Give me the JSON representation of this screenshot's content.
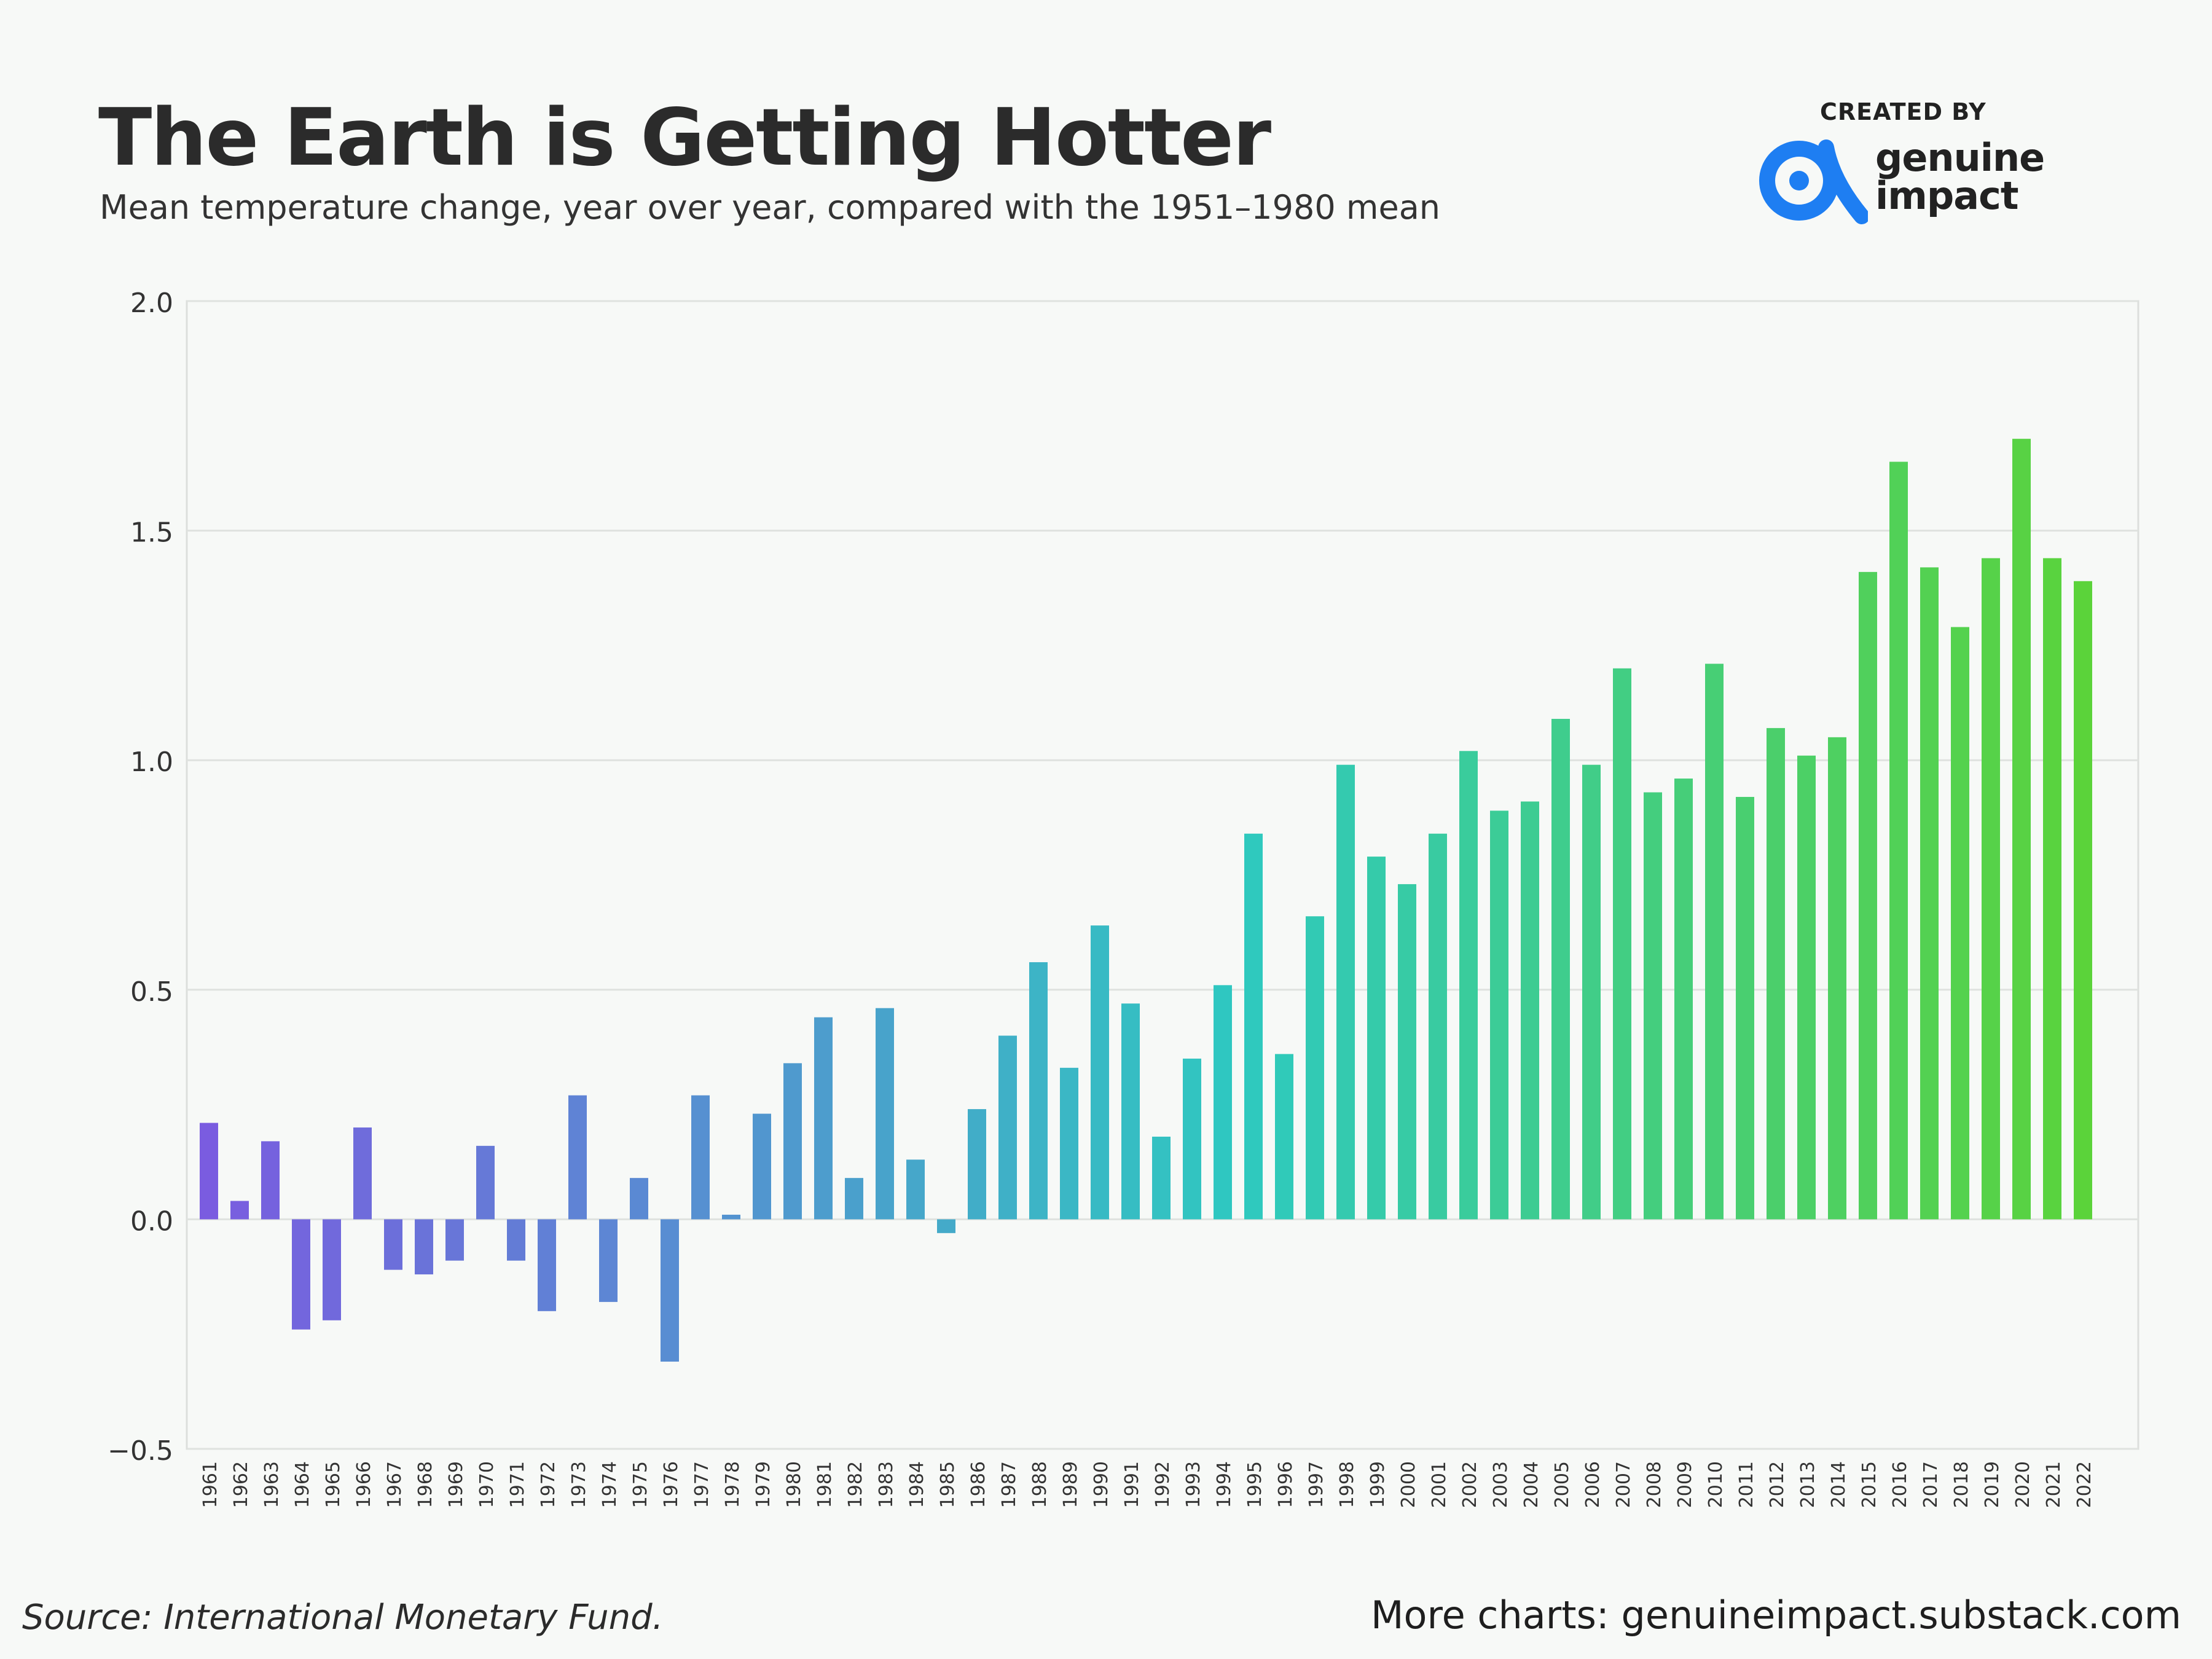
{
  "header": {
    "title": "The Earth is Getting Hotter",
    "subtitle": "Mean temperature change, year over year, compared with the 1951–1980 mean"
  },
  "credit": {
    "label": "CREATED BY",
    "brand_line1": "genuine",
    "brand_line2": "impact",
    "brand_color": "#1e7ef2"
  },
  "footer": {
    "source": "Source: International Monetary Fund.",
    "more": "More charts: genuineimpact.substack.com"
  },
  "chart_data": {
    "type": "bar",
    "title": "",
    "xlabel": "",
    "ylabel": "",
    "ylim": [
      -0.5,
      2.0
    ],
    "yticks": [
      "2.0",
      "1.5",
      "1.0",
      "0.5",
      "0.0",
      "−0.5"
    ],
    "ytick_values": [
      2.0,
      1.5,
      1.0,
      0.5,
      0.0,
      -0.5
    ],
    "grid": true,
    "legend": "none",
    "color_start": "#7a5ce0",
    "color_mid": "#2ec9c0",
    "color_end": "#5bd33a",
    "categories": [
      "1961",
      "1962",
      "1963",
      "1964",
      "1965",
      "1966",
      "1967",
      "1968",
      "1969",
      "1970",
      "1971",
      "1972",
      "1973",
      "1974",
      "1975",
      "1976",
      "1977",
      "1978",
      "1979",
      "1980",
      "1981",
      "1982",
      "1983",
      "1984",
      "1985",
      "1986",
      "1987",
      "1988",
      "1989",
      "1990",
      "1991",
      "1992",
      "1993",
      "1994",
      "1995",
      "1996",
      "1997",
      "1998",
      "1999",
      "2000",
      "2001",
      "2002",
      "2003",
      "2004",
      "2005",
      "2006",
      "2007",
      "2008",
      "2009",
      "2010",
      "2011",
      "2012",
      "2013",
      "2014",
      "2015",
      "2016",
      "2017",
      "2018",
      "2019",
      "2020",
      "2021",
      "2022"
    ],
    "values": [
      0.21,
      0.04,
      0.17,
      -0.24,
      -0.22,
      0.2,
      -0.11,
      -0.12,
      -0.09,
      0.16,
      -0.09,
      -0.2,
      0.27,
      -0.18,
      0.09,
      -0.31,
      0.27,
      0.01,
      0.23,
      0.34,
      0.44,
      0.09,
      0.46,
      0.13,
      -0.03,
      0.24,
      0.4,
      0.56,
      0.33,
      0.64,
      0.47,
      0.18,
      0.35,
      0.51,
      0.84,
      0.36,
      0.66,
      0.99,
      0.79,
      0.73,
      0.84,
      1.02,
      0.89,
      0.91,
      1.09,
      0.99,
      1.2,
      0.93,
      0.96,
      1.21,
      0.92,
      1.07,
      1.01,
      1.05,
      1.41,
      1.65,
      1.42,
      1.29,
      1.44,
      1.7,
      1.44,
      1.39
    ]
  }
}
